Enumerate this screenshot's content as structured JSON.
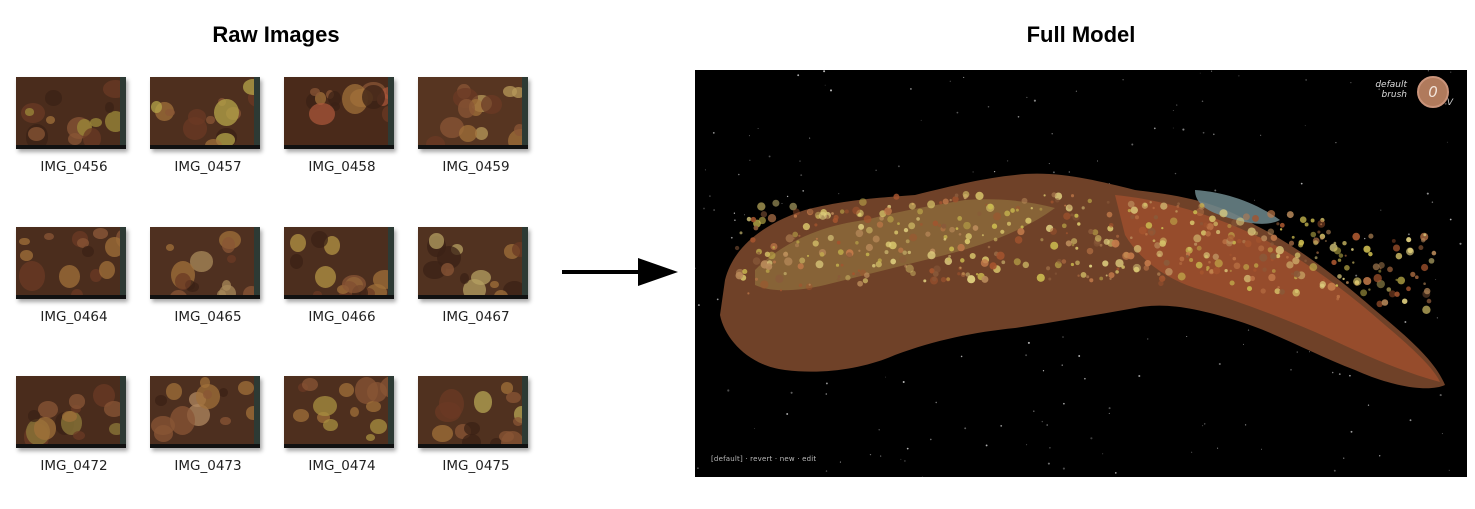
{
  "raw_title": "Raw Images",
  "model_title": "Full Model",
  "images": [
    {
      "label": "IMG_0456",
      "tone": "#4a2c1c",
      "patch": "#9c8a3a"
    },
    {
      "label": "IMG_0457",
      "tone": "#4e2f1e",
      "patch": "#b5a64a"
    },
    {
      "label": "IMG_0458",
      "tone": "#4a2a1a",
      "patch": "#a8563a"
    },
    {
      "label": "IMG_0459",
      "tone": "#573521",
      "patch": "#b79a5a"
    },
    {
      "label": "IMG_0464",
      "tone": "#4b2d1d",
      "patch": "#8e5a3a"
    },
    {
      "label": "IMG_0465",
      "tone": "#4f3020",
      "patch": "#a88a5a"
    },
    {
      "label": "IMG_0466",
      "tone": "#4c2e1e",
      "patch": "#b39444"
    },
    {
      "label": "IMG_0467",
      "tone": "#513220",
      "patch": "#b6a062"
    },
    {
      "label": "IMG_0472",
      "tone": "#4a2c1c",
      "patch": "#8d7a3a"
    },
    {
      "label": "IMG_0473",
      "tone": "#4d2f1f",
      "patch": "#b08860"
    },
    {
      "label": "IMG_0474",
      "tone": "#4e2f1e",
      "patch": "#a89040"
    },
    {
      "label": "IMG_0475",
      "tone": "#50311f",
      "patch": "#b5a654"
    }
  ],
  "viewer": {
    "brush_line1": "default",
    "brush_line2": "brush",
    "brush_value": "0",
    "brush_suffix": "V",
    "bottom_bar": "[default] · revert · new  ·   edit"
  },
  "colors": {
    "background": "#ffffff",
    "viewer_bg": "#000000",
    "reef_brown": "#7a4a2e",
    "reef_yellow": "#c9b94f",
    "reef_orange": "#a4542e",
    "reef_teal": "#6f8a8e"
  }
}
